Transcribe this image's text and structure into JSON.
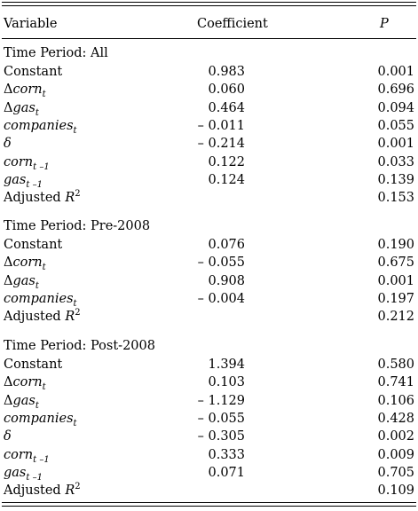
{
  "header": {
    "variable": "Variable",
    "coefficient": "Coefficient",
    "p": "P"
  },
  "sections": [
    {
      "title": "Time Period: All",
      "rows": [
        {
          "variable": {
            "pre": "Constant",
            "main": "",
            "sub": "",
            "sup": ""
          },
          "coefficient": "0.983",
          "p": "0.001"
        },
        {
          "variable": {
            "pre": "Δ",
            "main": "corn",
            "sub": "t",
            "sup": ""
          },
          "coefficient": "0.060",
          "p": "0.696"
        },
        {
          "variable": {
            "pre": "Δ",
            "main": "gas",
            "sub": "t",
            "sup": ""
          },
          "coefficient": "0.464",
          "p": "0.094"
        },
        {
          "variable": {
            "pre": "",
            "main": "companies",
            "sub": "t",
            "sup": ""
          },
          "coefficient": "– 0.011",
          "p": "0.055"
        },
        {
          "variable": {
            "pre": "",
            "main": "δ",
            "sub": "",
            "sup": ""
          },
          "coefficient": "– 0.214",
          "p": "0.001"
        },
        {
          "variable": {
            "pre": "",
            "main": "corn",
            "sub": "t –1",
            "sup": ""
          },
          "coefficient": "0.122",
          "p": "0.033"
        },
        {
          "variable": {
            "pre": "",
            "main": "gas",
            "sub": "t –1",
            "sup": ""
          },
          "coefficient": "0.124",
          "p": "0.139"
        },
        {
          "variable": {
            "pre": "Adjusted ",
            "main": "R",
            "sub": "",
            "sup": "2"
          },
          "coefficient": "",
          "p": "0.153"
        }
      ]
    },
    {
      "title": "Time Period: Pre-2008",
      "rows": [
        {
          "variable": {
            "pre": "Constant",
            "main": "",
            "sub": "",
            "sup": ""
          },
          "coefficient": "0.076",
          "p": "0.190"
        },
        {
          "variable": {
            "pre": "Δ",
            "main": "corn",
            "sub": "t",
            "sup": ""
          },
          "coefficient": "– 0.055",
          "p": "0.675"
        },
        {
          "variable": {
            "pre": "Δ",
            "main": "gas",
            "sub": "t",
            "sup": ""
          },
          "coefficient": "0.908",
          "p": "0.001"
        },
        {
          "variable": {
            "pre": "",
            "main": "companies",
            "sub": "t",
            "sup": ""
          },
          "coefficient": "– 0.004",
          "p": "0.197"
        },
        {
          "variable": {
            "pre": "Adjusted ",
            "main": "R",
            "sub": "",
            "sup": "2"
          },
          "coefficient": "",
          "p": "0.212"
        }
      ]
    },
    {
      "title": "Time Period: Post-2008",
      "rows": [
        {
          "variable": {
            "pre": "Constant",
            "main": "",
            "sub": "",
            "sup": ""
          },
          "coefficient": "1.394",
          "p": "0.580"
        },
        {
          "variable": {
            "pre": "Δ",
            "main": "corn",
            "sub": "t",
            "sup": ""
          },
          "coefficient": "0.103",
          "p": "0.741"
        },
        {
          "variable": {
            "pre": "Δ",
            "main": "gas",
            "sub": "t",
            "sup": ""
          },
          "coefficient": "– 1.129",
          "p": "0.106"
        },
        {
          "variable": {
            "pre": "",
            "main": "companies",
            "sub": "t",
            "sup": ""
          },
          "coefficient": "– 0.055",
          "p": "0.428"
        },
        {
          "variable": {
            "pre": "",
            "main": "δ",
            "sub": "",
            "sup": ""
          },
          "coefficient": "– 0.305",
          "p": "0.002"
        },
        {
          "variable": {
            "pre": "",
            "main": "corn",
            "sub": "t –1",
            "sup": ""
          },
          "coefficient": "0.333",
          "p": "0.009"
        },
        {
          "variable": {
            "pre": "",
            "main": "gas",
            "sub": "t –1",
            "sup": ""
          },
          "coefficient": "0.071",
          "p": "0.705"
        },
        {
          "variable": {
            "pre": "Adjusted ",
            "main": "R",
            "sub": "",
            "sup": "2"
          },
          "coefficient": "",
          "p": "0.109"
        }
      ]
    }
  ]
}
